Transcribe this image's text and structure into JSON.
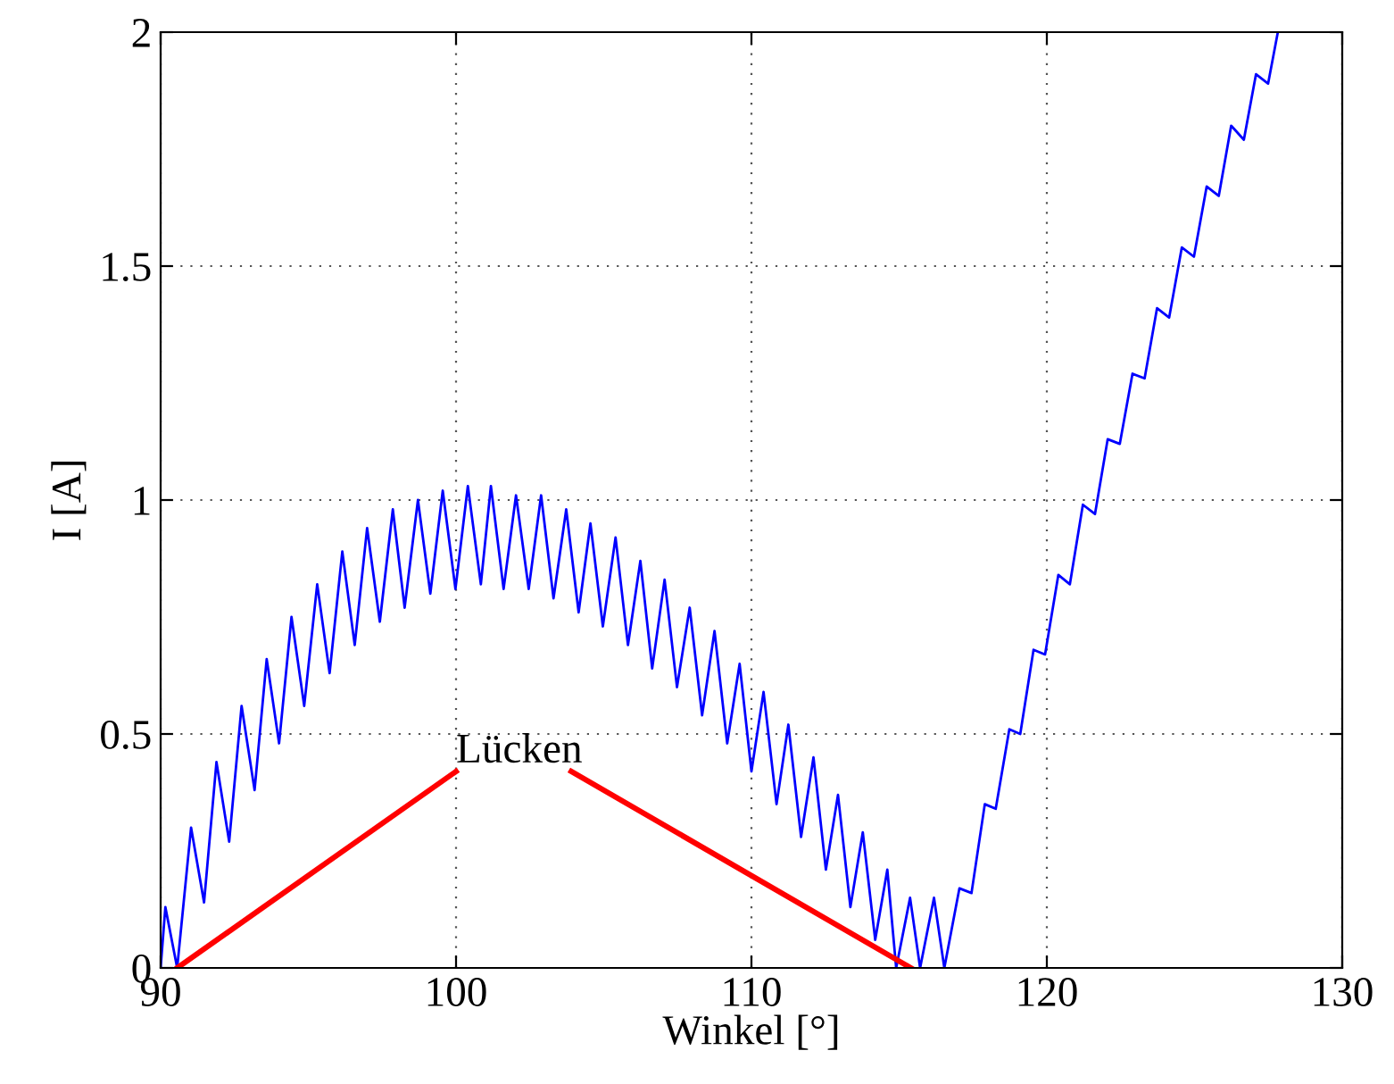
{
  "chart_data": {
    "type": "line",
    "xlabel": "Winkel [°]",
    "ylabel": "I [A]",
    "xlim": [
      90,
      130
    ],
    "ylim": [
      0,
      2
    ],
    "xticks": [
      90,
      100,
      110,
      120,
      130
    ],
    "yticks": [
      0,
      0.5,
      1,
      1.5,
      2
    ],
    "grid": true,
    "series": [
      {
        "color": "#0000ff",
        "x": [
          90.0,
          90.16,
          90.56,
          91.03,
          91.47,
          91.89,
          92.32,
          92.74,
          93.18,
          93.59,
          94.01,
          94.43,
          94.86,
          95.3,
          95.72,
          96.15,
          96.57,
          96.99,
          97.42,
          97.86,
          98.26,
          98.71,
          99.13,
          99.55,
          99.98,
          100.4,
          100.84,
          101.18,
          101.61,
          102.03,
          102.46,
          102.88,
          103.3,
          103.73,
          104.15,
          104.55,
          104.97,
          105.4,
          105.82,
          106.24,
          106.64,
          107.06,
          107.48,
          107.91,
          108.33,
          108.75,
          109.18,
          109.6,
          110.0,
          110.41,
          110.85,
          111.25,
          111.68,
          112.1,
          112.52,
          112.93,
          113.35,
          113.77,
          114.19,
          114.6,
          114.9,
          115.37,
          115.71,
          116.18,
          116.53,
          117.04,
          117.45,
          117.9,
          118.27,
          118.73,
          119.1,
          119.55,
          119.94,
          120.39,
          120.78,
          121.22,
          121.63,
          122.06,
          122.47,
          122.9,
          123.31,
          123.73,
          124.14,
          124.57,
          124.98,
          125.41,
          125.82,
          126.24,
          126.67,
          127.08,
          127.49,
          127.82
        ],
        "values": [
          0,
          0.13,
          0,
          0.3,
          0.14,
          0.44,
          0.27,
          0.56,
          0.38,
          0.66,
          0.48,
          0.75,
          0.56,
          0.82,
          0.63,
          0.89,
          0.69,
          0.94,
          0.74,
          0.98,
          0.77,
          1.0,
          0.8,
          1.02,
          0.81,
          1.03,
          0.82,
          1.03,
          0.81,
          1.01,
          0.81,
          1.01,
          0.79,
          0.98,
          0.76,
          0.95,
          0.73,
          0.92,
          0.69,
          0.87,
          0.64,
          0.83,
          0.6,
          0.77,
          0.54,
          0.72,
          0.48,
          0.65,
          0.42,
          0.59,
          0.35,
          0.52,
          0.28,
          0.45,
          0.21,
          0.37,
          0.13,
          0.29,
          0.06,
          0.21,
          0,
          0.15,
          0,
          0.15,
          0,
          0.17,
          0.16,
          0.35,
          0.34,
          0.51,
          0.5,
          0.68,
          0.67,
          0.84,
          0.82,
          0.99,
          0.97,
          1.13,
          1.12,
          1.27,
          1.26,
          1.41,
          1.39,
          1.54,
          1.52,
          1.67,
          1.65,
          1.8,
          1.77,
          1.91,
          1.89,
          2.0
        ]
      },
      {
        "color": "#ff0000",
        "x": [
          90.56,
          100.0
        ],
        "values": [
          0,
          0.42
        ]
      },
      {
        "color": "#ff0000",
        "x": [
          103.9,
          115.4
        ],
        "values": [
          0.42,
          0
        ]
      }
    ],
    "annotations": [
      {
        "text": "Lücken",
        "x": 100,
        "y": 0.42
      }
    ]
  }
}
